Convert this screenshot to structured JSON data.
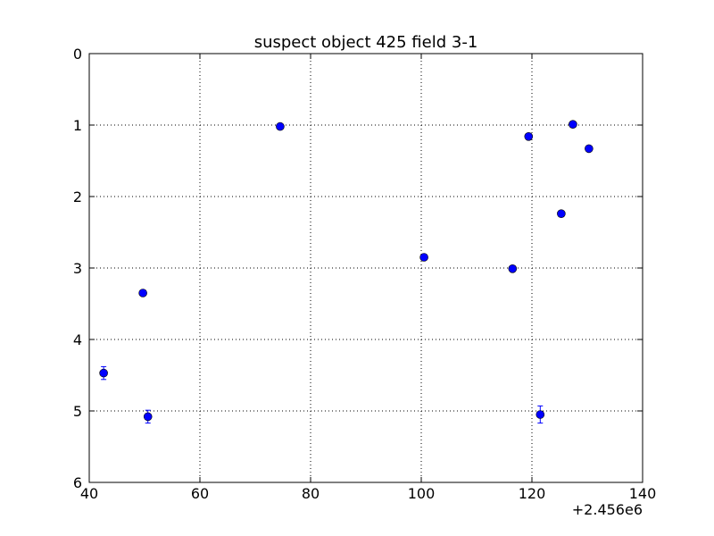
{
  "chart_data": {
    "type": "errorbar-scatter",
    "title": "suspect object 425 field 3-1",
    "x_offset_label": "+2.456e6",
    "series": [
      {
        "color": "#0000ff",
        "x": [
          42.6,
          49.7,
          50.6,
          74.5,
          100.5,
          116.5,
          119.4,
          121.5,
          125.3,
          127.4,
          130.3
        ],
        "values": [
          4.47,
          3.35,
          5.08,
          1.02,
          2.85,
          3.01,
          1.16,
          5.05,
          2.24,
          0.99,
          1.33
        ],
        "errors": [
          0.09,
          0.03,
          0.09,
          0.03,
          0.03,
          0.03,
          0.03,
          0.12,
          0.03,
          0.03,
          0.03
        ]
      }
    ],
    "xlim": [
      40,
      140
    ],
    "xticks": [
      40,
      60,
      80,
      100,
      120,
      140
    ],
    "ylim": [
      0,
      6
    ],
    "yticks": [
      0,
      1,
      2,
      3,
      4,
      5,
      6
    ],
    "invert_y": true,
    "grid": true
  }
}
